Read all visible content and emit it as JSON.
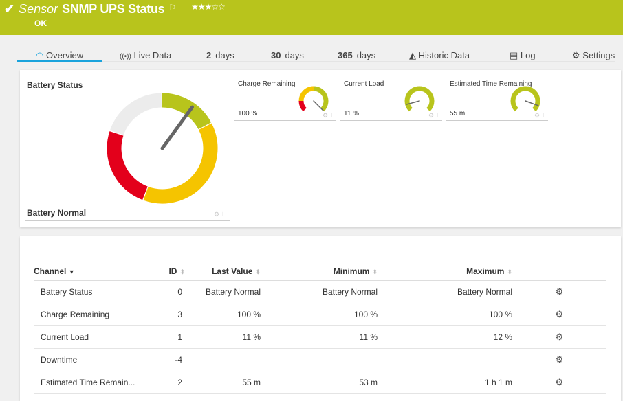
{
  "header": {
    "prefix": "Sensor",
    "title": "SNMP UPS Status",
    "stars": "★★★☆☆",
    "status": "OK",
    "color": "#b8c41c"
  },
  "tabs": [
    {
      "icon": "gauge-icon",
      "label": "Overview"
    },
    {
      "icon": "live-icon",
      "label": "Live Data"
    },
    {
      "num": "2",
      "label": "days"
    },
    {
      "num": "30",
      "label": "days"
    },
    {
      "num": "365",
      "label": "days"
    },
    {
      "icon": "chart-icon",
      "label": "Historic Data"
    },
    {
      "icon": "log-icon",
      "label": "Log"
    },
    {
      "icon": "gear-icon",
      "label": "Settings"
    }
  ],
  "main_gauge": {
    "title": "Battery Status",
    "value": "Battery Normal",
    "needle_deg": 36
  },
  "mini_gauges": [
    {
      "title": "Charge Remaining",
      "value": "100 %",
      "needle_deg": 135,
      "segments": [
        [
          "#e3001b",
          -135,
          -90
        ],
        [
          "#f5c400",
          -90,
          0
        ],
        [
          "#b8c41c",
          0,
          135
        ]
      ]
    },
    {
      "title": "Current Load",
      "value": "11 %",
      "needle_deg": -105,
      "segments": [
        [
          "#b8c41c",
          -135,
          135
        ]
      ]
    },
    {
      "title": "Estimated Time Remaining",
      "value": "55 m",
      "needle_deg": 110,
      "segments": [
        [
          "#b8c41c",
          -135,
          135
        ]
      ]
    }
  ],
  "table": {
    "headers": [
      "Channel",
      "ID",
      "Last Value",
      "Minimum",
      "Maximum"
    ],
    "rows": [
      [
        "Battery Status",
        "0",
        "Battery Normal",
        "Battery Normal",
        "Battery Normal"
      ],
      [
        "Charge Remaining",
        "3",
        "100 %",
        "100 %",
        "100 %"
      ],
      [
        "Current Load",
        "1",
        "11 %",
        "11 %",
        "12 %"
      ],
      [
        "Downtime",
        "-4",
        "",
        "",
        ""
      ],
      [
        "Estimated Time Remain...",
        "2",
        "55 m",
        "53 m",
        "1 h 1 m"
      ]
    ]
  }
}
